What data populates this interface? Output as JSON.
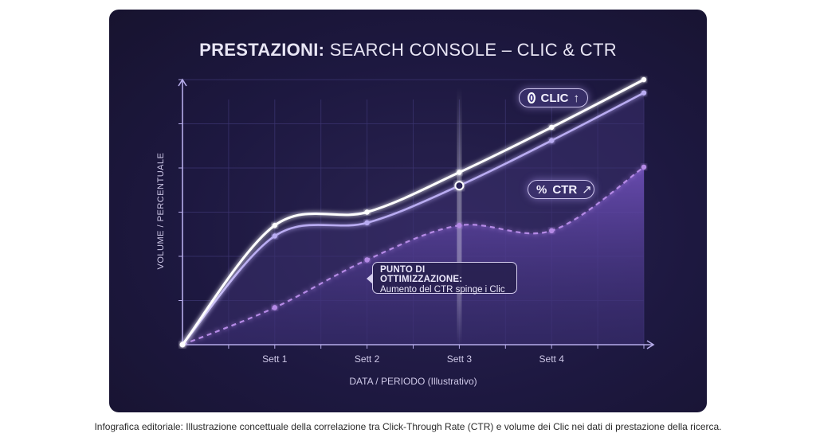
{
  "title_bold": "PRESTAZIONI:",
  "title_rest": " SEARCH CONSOLE – CLIC & CTR",
  "caption": "Infografica editoriale: Illustrazione concettuale della correlazione tra Click-Through Rate (CTR) e volume dei Clic nei dati di prestazione della ricerca.",
  "legend": {
    "clic": {
      "label": "CLIC",
      "arrow": "↑",
      "icon": "target-dot-icon"
    },
    "ctr": {
      "label": "CTR",
      "symbol": "%",
      "arrow": "↗",
      "icon": "percent-icon"
    }
  },
  "annotation": {
    "heading": "PUNTO DI OTTIMIZZAZIONE:",
    "text": "Aumento del CTR spinge i Clic"
  },
  "colors": {
    "clic_line": "#ffffff",
    "clic_secondary": "#b9acf2",
    "ctr_line": "#b58ae6",
    "background": "#1d1840"
  },
  "chart_data": {
    "type": "line",
    "title": "PRESTAZIONI: SEARCH CONSOLE – CLIC & CTR",
    "xlabel": "DATA / PERIODO (Illustrativo)",
    "ylabel": "VOLUME / PERCENTUALE",
    "categories": [
      "Sett 1",
      "Sett 2",
      "Sett 3",
      "Sett 4"
    ],
    "x": [
      0,
      1,
      2,
      3,
      4,
      5
    ],
    "xlim": [
      0,
      5
    ],
    "ylim": [
      0,
      100
    ],
    "grid": true,
    "highlight_x": 3,
    "series": [
      {
        "name": "CLIC",
        "style": "solid-bright",
        "values": [
          0,
          45,
          50,
          65,
          82,
          100
        ]
      },
      {
        "name": "",
        "style": "solid-soft",
        "values": [
          0,
          41,
          46,
          60,
          77,
          95
        ]
      },
      {
        "name": "CTR",
        "style": "dashed-area",
        "values": [
          0,
          14,
          32,
          45,
          43,
          67
        ]
      }
    ]
  }
}
